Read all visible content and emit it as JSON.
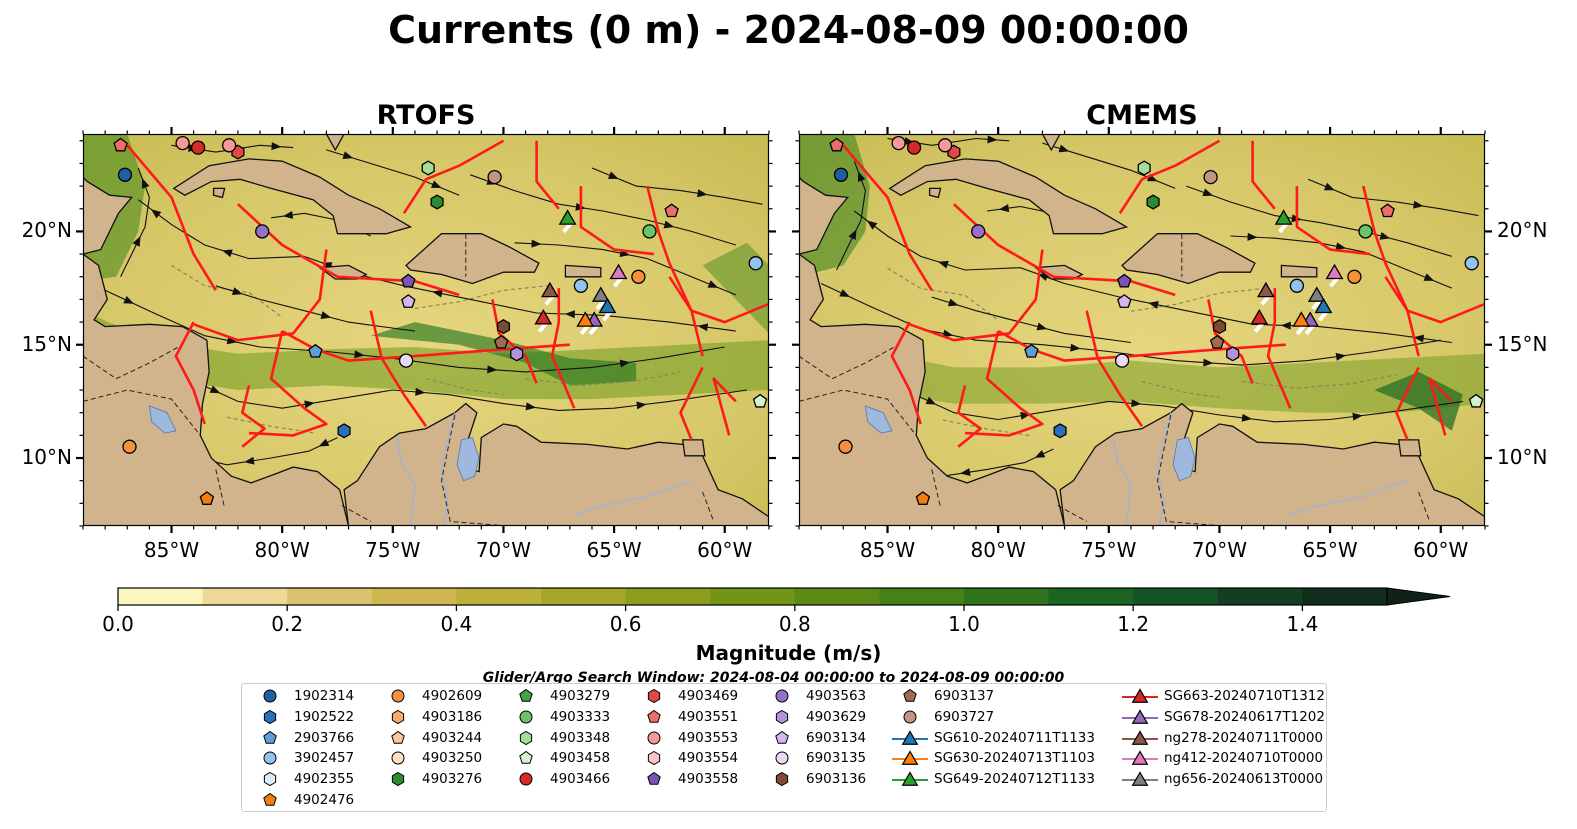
{
  "title": "Currents (0 m) - 2024-08-09 00:00:00",
  "panels": [
    {
      "title": "RTOFS"
    },
    {
      "title": "CMEMS"
    }
  ],
  "axes": {
    "lon_ticks": [
      "85°W",
      "80°W",
      "75°W",
      "70°W",
      "65°W",
      "60°W"
    ],
    "lat_ticks": [
      "20°N",
      "15°N",
      "10°N"
    ]
  },
  "colorbar": {
    "label": "Magnitude (m/s)",
    "range": [
      0.0,
      1.5
    ],
    "extend": "max",
    "ticks": [
      "0.0",
      "0.2",
      "0.4",
      "0.6",
      "0.8",
      "1.0",
      "1.2",
      "1.4"
    ],
    "colors": [
      "#fdf5c0",
      "#ecd995",
      "#dcc170",
      "#cfb64f",
      "#bbb03a",
      "#a6a62b",
      "#8d9c1f",
      "#749415",
      "#5c8a16",
      "#458019",
      "#2f731d",
      "#1c6422",
      "#145424",
      "#123f22",
      "#112d1c",
      "#102218"
    ]
  },
  "search_window": "Glider/Argo Search Window: 2024-08-04 00:00:00 to 2024-08-09 00:00:00",
  "legend": {
    "columns": [
      [
        {
          "label": "1902314",
          "marker": "circle",
          "color": "#1f5fa0"
        },
        {
          "label": "1902522",
          "marker": "hexagon",
          "color": "#2a70b8"
        },
        {
          "label": "2903766",
          "marker": "pentagon",
          "color": "#5f9fd6"
        },
        {
          "label": "3902457",
          "marker": "circle",
          "color": "#92c3ee"
        },
        {
          "label": "4902355",
          "marker": "hexagon",
          "color": "#dcecfb"
        },
        {
          "label": "4902476",
          "marker": "pentagon",
          "color": "#f07d12"
        }
      ],
      [
        {
          "label": "4902609",
          "marker": "circle",
          "color": "#f5913c"
        },
        {
          "label": "4903186",
          "marker": "hexagon",
          "color": "#f8aa6a"
        },
        {
          "label": "4903244",
          "marker": "pentagon",
          "color": "#fbc79c"
        },
        {
          "label": "4903250",
          "marker": "circle",
          "color": "#fde2c6"
        },
        {
          "label": "4903276",
          "marker": "hexagon",
          "color": "#2b8a33"
        }
      ],
      [
        {
          "label": "4903279",
          "marker": "pentagon",
          "color": "#3da545"
        },
        {
          "label": "4903333",
          "marker": "circle",
          "color": "#6cc46a"
        },
        {
          "label": "4903348",
          "marker": "hexagon",
          "color": "#a4dd9a"
        },
        {
          "label": "4903458",
          "marker": "pentagon",
          "color": "#d4f2cd"
        },
        {
          "label": "4903466",
          "marker": "circle",
          "color": "#d42a28"
        }
      ],
      [
        {
          "label": "4903469",
          "marker": "hexagon",
          "color": "#e04846"
        },
        {
          "label": "4903551",
          "marker": "pentagon",
          "color": "#ec6e6c"
        },
        {
          "label": "4903553",
          "marker": "circle",
          "color": "#f59896"
        },
        {
          "label": "4903554",
          "marker": "hexagon",
          "color": "#fbc4c3"
        },
        {
          "label": "4903558",
          "marker": "pentagon",
          "color": "#7a55b8"
        }
      ],
      [
        {
          "label": "4903563",
          "marker": "circle",
          "color": "#9570c9"
        },
        {
          "label": "4903629",
          "marker": "hexagon",
          "color": "#b293db"
        },
        {
          "label": "6903134",
          "marker": "pentagon",
          "color": "#d2b8ec"
        },
        {
          "label": "6903135",
          "marker": "circle",
          "color": "#ead9f7"
        },
        {
          "label": "6903136",
          "marker": "hexagon",
          "color": "#7d4a33"
        }
      ],
      [
        {
          "label": "6903137",
          "marker": "pentagon",
          "color": "#a06b55"
        },
        {
          "label": "6903727",
          "marker": "circle",
          "color": "#c49483"
        },
        {
          "label": "SG610-20240711T1133",
          "marker": "triangle",
          "color": "#1f77b4"
        },
        {
          "label": "SG630-20240713T1103",
          "marker": "triangle",
          "color": "#ff7f0e"
        },
        {
          "label": "SG649-20240712T1133",
          "marker": "triangle",
          "color": "#2ca02c"
        }
      ],
      [
        {
          "label": "SG663-20240710T1312",
          "marker": "triangle",
          "color": "#d62728"
        },
        {
          "label": "SG678-20240617T1202",
          "marker": "triangle",
          "color": "#9467bd"
        },
        {
          "label": "ng278-20240711T0000",
          "marker": "triangle",
          "color": "#8c564b"
        },
        {
          "label": "ng412-20240710T0000",
          "marker": "triangle",
          "color": "#e377c2"
        },
        {
          "label": "ng656-20240613T0000",
          "marker": "triangle",
          "color": "#7f7f7f"
        }
      ]
    ]
  },
  "floats": [
    {
      "id": "1902314",
      "lon": -87.1,
      "lat": 22.5
    },
    {
      "id": "4903276",
      "lon": -73.0,
      "lat": 21.3
    },
    {
      "id": "6903727",
      "lon": -70.4,
      "lat": 22.4
    },
    {
      "id": "4903563",
      "lon": -80.9,
      "lat": 20.0
    },
    {
      "id": "4903333",
      "lon": -63.4,
      "lat": 20.0
    },
    {
      "id": "4903551",
      "lon": -62.4,
      "lat": 20.9
    },
    {
      "id": "4903348",
      "lon": -73.4,
      "lat": 22.8
    },
    {
      "id": "4903466",
      "lon": -83.8,
      "lat": 23.7
    },
    {
      "id": "4903469",
      "lon": -82.0,
      "lat": 23.5
    },
    {
      "id": "4903553",
      "lon": -84.5,
      "lat": 23.9
    },
    {
      "id": "4903553",
      "lon": -82.4,
      "lat": 23.8
    },
    {
      "id": "4903551",
      "lon": -87.3,
      "lat": 23.8
    },
    {
      "id": "4903558",
      "lon": -74.3,
      "lat": 17.8
    },
    {
      "id": "6903134",
      "lon": -74.3,
      "lat": 16.9
    },
    {
      "id": "3902457",
      "lon": -66.5,
      "lat": 17.6
    },
    {
      "id": "4902609",
      "lon": -63.9,
      "lat": 18.0
    },
    {
      "id": "6903136",
      "lon": -70.0,
      "lat": 15.8
    },
    {
      "id": "6903137",
      "lon": -70.1,
      "lat": 15.1
    },
    {
      "id": "4903629",
      "lon": -69.4,
      "lat": 14.6
    },
    {
      "id": "6903135",
      "lon": -74.4,
      "lat": 14.3
    },
    {
      "id": "2903766",
      "lon": -78.5,
      "lat": 14.7
    },
    {
      "id": "1902522",
      "lon": -77.2,
      "lat": 11.2
    },
    {
      "id": "4902609",
      "lon": -86.9,
      "lat": 10.5
    },
    {
      "id": "4902476",
      "lon": -83.4,
      "lat": 8.2
    },
    {
      "id": "3902457",
      "lon": -58.6,
      "lat": 18.6
    },
    {
      "id": "4903458",
      "lon": -58.4,
      "lat": 12.5
    }
  ],
  "gliders": [
    {
      "id": "SG649-20240712T1133",
      "lon": -67.1,
      "lat": 20.6
    },
    {
      "id": "ng278-20240711T0000",
      "lon": -67.9,
      "lat": 17.4
    },
    {
      "id": "SG663-20240710T1312",
      "lon": -68.2,
      "lat": 16.2
    },
    {
      "id": "ng656-20240613T0000",
      "lon": -65.6,
      "lat": 17.2
    },
    {
      "id": "ng412-20240710T0000",
      "lon": -64.8,
      "lat": 18.2
    },
    {
      "id": "SG610-20240711T1133",
      "lon": -65.3,
      "lat": 16.7
    },
    {
      "id": "SG678-20240617T1202",
      "lon": -65.9,
      "lat": 16.1
    },
    {
      "id": "SG630-20240713T1103",
      "lon": -66.3,
      "lat": 16.1
    }
  ]
}
